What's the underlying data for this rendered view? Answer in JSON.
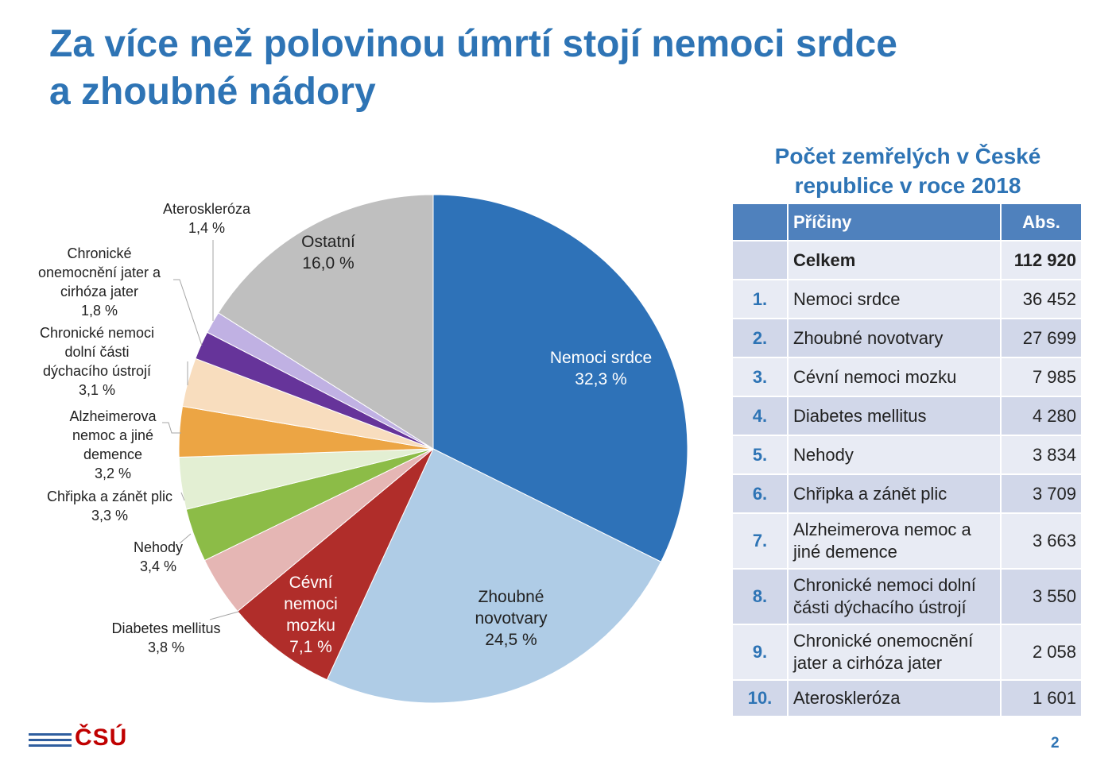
{
  "slide": {
    "title_line1": "Za více než polovinou úmrtí stojí nemoci srdce",
    "title_line2": "a zhoubné nádory",
    "page_number": "2",
    "logo_text": "ČSÚ"
  },
  "chart_data": {
    "type": "pie",
    "slices": [
      {
        "label_lines": [
          "Nemoci srdce",
          "32,3 %"
        ],
        "value": 32.3,
        "color": "#2e72b8",
        "label_color": "#ffffff",
        "label_place": "inside"
      },
      {
        "label_lines": [
          "Zhoubné",
          "novotvary",
          "24,5 %"
        ],
        "value": 24.5,
        "color": "#afcce6",
        "label_color": "#222222",
        "label_place": "inside"
      },
      {
        "label_lines": [
          "Cévní",
          "nemoci",
          "mozku",
          "7,1 %"
        ],
        "value": 7.1,
        "color": "#b02d2a",
        "label_color": "#ffffff",
        "label_place": "inside"
      },
      {
        "label_lines": [
          "Diabetes mellitus",
          "3,8 %"
        ],
        "value": 3.8,
        "color": "#e5b6b4",
        "label_color": "#222222",
        "label_place": "outside"
      },
      {
        "label_lines": [
          "Nehody",
          "3,4 %"
        ],
        "value": 3.4,
        "color": "#8cbc47",
        "label_color": "#222222",
        "label_place": "outside"
      },
      {
        "label_lines": [
          "Chřipka a zánět plic",
          "3,3 %"
        ],
        "value": 3.3,
        "color": "#e3efd3",
        "label_color": "#222222",
        "label_place": "outside"
      },
      {
        "label_lines": [
          "Alzheimerova",
          "nemoc a jiné",
          "demence",
          "3,2 %"
        ],
        "value": 3.2,
        "color": "#eca544",
        "label_color": "#222222",
        "label_place": "outside"
      },
      {
        "label_lines": [
          "Chronické nemoci",
          "dolní části",
          "dýchacího ústrojí",
          "3,1 %"
        ],
        "value": 3.1,
        "color": "#f8ddbe",
        "label_color": "#222222",
        "label_place": "outside"
      },
      {
        "label_lines": [
          "Chronické",
          "onemocnění jater a",
          "cirhóza jater",
          "1,8 %"
        ],
        "value": 1.8,
        "color": "#66349a",
        "label_color": "#222222",
        "label_place": "outside"
      },
      {
        "label_lines": [
          "Ateroskleróza",
          "1,4 %"
        ],
        "value": 1.4,
        "color": "#c0b1e3",
        "label_color": "#222222",
        "label_place": "outside"
      },
      {
        "label_lines": [
          "Ostatní",
          "16,0 %"
        ],
        "value": 16.0,
        "color": "#bfbfbf",
        "label_color": "#222222",
        "label_place": "inside"
      }
    ]
  },
  "table": {
    "title": "Počet zemřelých v České republice v roce 2018",
    "headers": {
      "rank": "",
      "cause": "Příčiny",
      "abs": "Abs."
    },
    "total": {
      "label": "Celkem",
      "value": "112 920"
    },
    "rows": [
      {
        "rank": "1.",
        "cause": "Nemoci srdce",
        "abs": "36 452"
      },
      {
        "rank": "2.",
        "cause": "Zhoubné novotvary",
        "abs": "27 699"
      },
      {
        "rank": "3.",
        "cause": "Cévní nemoci mozku",
        "abs": "7 985"
      },
      {
        "rank": "4.",
        "cause": "Diabetes mellitus",
        "abs": "4 280"
      },
      {
        "rank": "5.",
        "cause": "Nehody",
        "abs": "3 834"
      },
      {
        "rank": "6.",
        "cause": "Chřipka a zánět plic",
        "abs": "3 709"
      },
      {
        "rank": "7.",
        "cause": "Alzheimerova nemoc a jiné demence",
        "abs": "3 663"
      },
      {
        "rank": "8.",
        "cause": "Chronické nemoci dolní části dýchacího ústrojí",
        "abs": "3 550"
      },
      {
        "rank": "9.",
        "cause": "Chronické onemocnění jater a cirhóza jater",
        "abs": "2 058"
      },
      {
        "rank": "10.",
        "cause": "Ateroskleróza",
        "abs": "1 601"
      }
    ]
  }
}
